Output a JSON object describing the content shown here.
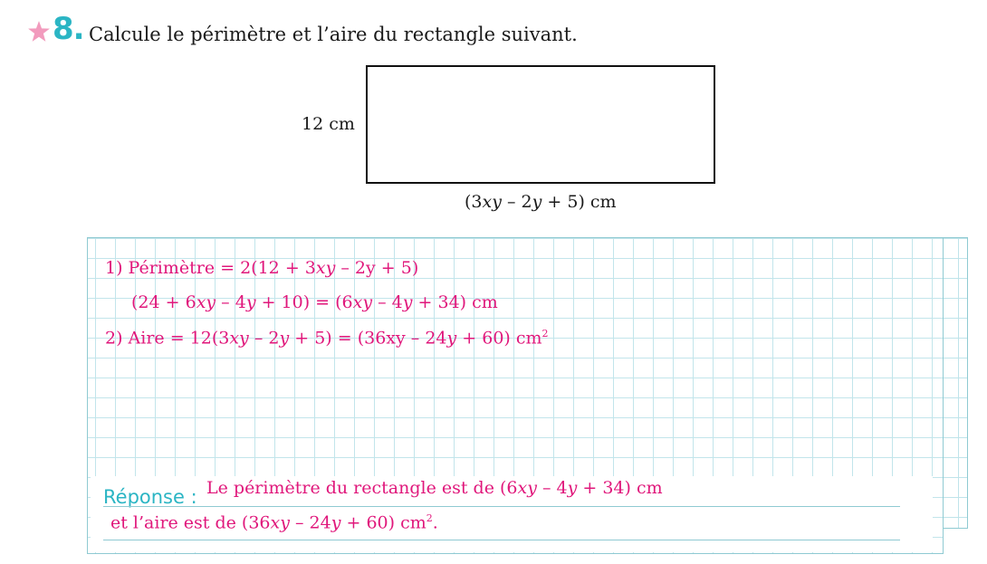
{
  "exercise": {
    "number": "8.",
    "instruction": "Calcule le périmètre et l’aire du rectangle suivant.",
    "star_color": "#f29bbd",
    "number_color": "#2bb5c4"
  },
  "figure": {
    "side_label": "12 cm",
    "bottom_label_parts": [
      "(3",
      "xy",
      " – 2",
      "y",
      " + 5) cm"
    ]
  },
  "solution": {
    "line1_parts": [
      "1)  Périmètre = 2(12 + 3",
      "xy",
      " – 2y + 5)"
    ],
    "line2_parts": [
      "(24 + 6",
      "xy",
      " – 4",
      "y",
      " + 10) = (6",
      "xy",
      " – 4",
      "y",
      " + 34) cm"
    ],
    "line3_parts": [
      "2)  Aire = 12(3",
      "xy",
      " – 2",
      "y",
      " + 5) = (36xy – 24",
      "y",
      " + 60) cm",
      "2"
    ],
    "color": "#e0177b"
  },
  "answer": {
    "label": "Réponse :",
    "line1_parts": [
      "Le périmètre du rectangle est de (6",
      "xy",
      " – 4",
      "y",
      " + 34) cm"
    ],
    "line2_parts": [
      "et l’aire est de (36",
      "xy",
      " – 24",
      "y",
      " + 60) cm",
      "2",
      "."
    ]
  }
}
